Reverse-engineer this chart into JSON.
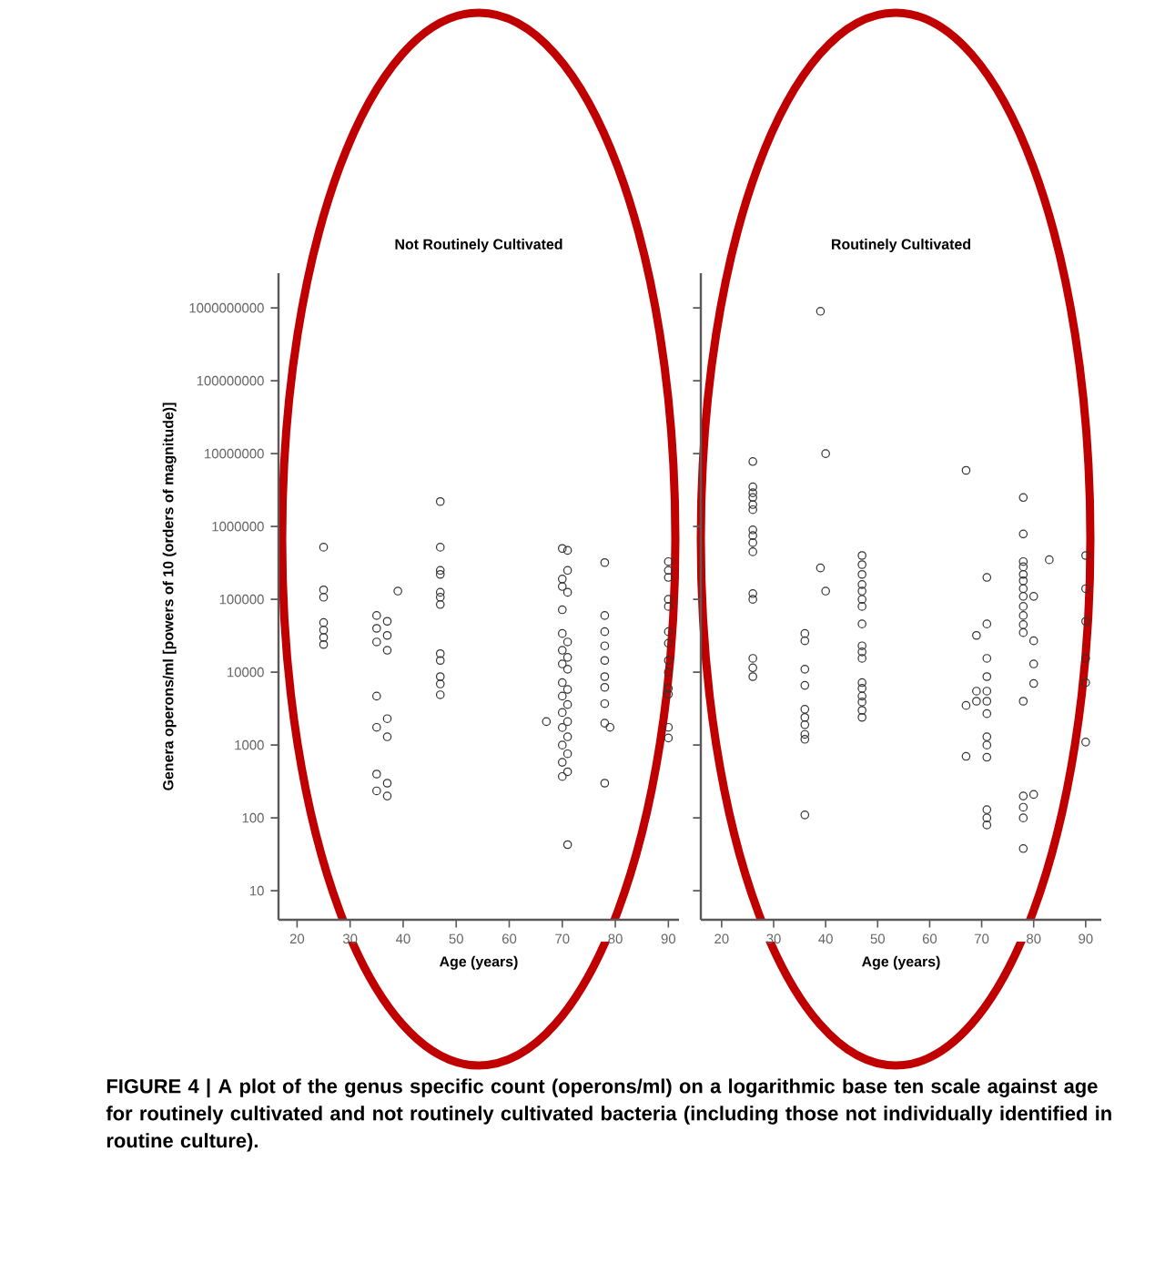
{
  "chart_data": [
    {
      "type": "scatter",
      "title": "Not Routinely Cultivated",
      "xlabel": "Age (years)",
      "ylabel": "Genera operons/ml [powers of 10 (orders of magnitude)]",
      "annotations": [
        "FIGURE 4 | A plot of the genus specific count (operons/ml) on a logarithmic base ten scale against age for routinely cultivated and not routinely cultivated bacteria (including those not individually identified in routine culture)."
      ],
      "log": "y",
      "marker": "circle",
      "color": "#333333",
      "xlim": [
        16.5,
        92
      ],
      "xticks": [
        20,
        30,
        40,
        50,
        60,
        70,
        80,
        90
      ],
      "ylim": [
        4,
        3000000000
      ],
      "yticks": [
        10,
        100,
        1000,
        10000,
        100000,
        1000000,
        10000000,
        100000000,
        1000000000
      ],
      "x": [
        25,
        25,
        25,
        25,
        25,
        25,
        25,
        35,
        35,
        35,
        35,
        35,
        35,
        35,
        37,
        37,
        37,
        37,
        37,
        37,
        37,
        39,
        47,
        47,
        47,
        47,
        47,
        47,
        47,
        47,
        47,
        47,
        47,
        47,
        67,
        70,
        70,
        70,
        70,
        70,
        70,
        70,
        70,
        70,
        70,
        70,
        70,
        70,
        70,
        71,
        71,
        71,
        71,
        71,
        71,
        71,
        71,
        71,
        71,
        71,
        71,
        71,
        78,
        78,
        78,
        78,
        78,
        78,
        78,
        78,
        78,
        78,
        79,
        90,
        90,
        90,
        90,
        90,
        90,
        90,
        90,
        90,
        90,
        90,
        90,
        90
      ],
      "values": [
        520000,
        135000,
        107000,
        48000,
        38000,
        30000,
        24000,
        60000,
        40000,
        26000,
        4700,
        1750,
        400,
        235,
        50000,
        32000,
        20000,
        2300,
        1300,
        300,
        200,
        130000,
        2200000,
        520000,
        250000,
        220000,
        125000,
        107000,
        85000,
        18000,
        14500,
        8700,
        6900,
        4900,
        2100,
        500000,
        190000,
        150000,
        72000,
        34000,
        20000,
        13000,
        7200,
        4700,
        2800,
        1740,
        1000,
        580,
        370,
        470000,
        250000,
        125000,
        26000,
        16000,
        11000,
        5800,
        3600,
        2100,
        1300,
        760,
        430,
        43,
        320000,
        60000,
        36000,
        23000,
        14500,
        8700,
        6200,
        3700,
        2000,
        300,
        1750,
        330000,
        250000,
        200000,
        100000,
        80000,
        36000,
        25000,
        14500,
        10000,
        6000,
        5000,
        1750,
        1250
      ]
    },
    {
      "type": "scatter",
      "title": "Routinely Cultivated",
      "xlabel": "Age (years)",
      "tick_labels": "x",
      "log": "y",
      "marker": "circle",
      "color": "#333333",
      "xlim": [
        16,
        93
      ],
      "xticks": [
        20,
        30,
        40,
        50,
        60,
        70,
        80,
        90
      ],
      "ylim": [
        4,
        3000000000
      ],
      "yticks": [
        10,
        100,
        1000,
        10000,
        100000,
        1000000,
        10000000,
        100000000,
        1000000000
      ],
      "x": [
        26,
        26,
        26,
        26,
        26,
        26,
        26,
        26,
        26,
        26,
        26,
        26,
        26,
        26,
        26,
        36,
        36,
        36,
        36,
        36,
        36,
        36,
        36,
        36,
        36,
        39,
        39,
        40,
        40,
        47,
        47,
        47,
        47,
        47,
        47,
        47,
        47,
        47,
        47,
        47,
        47,
        47,
        47,
        47,
        47,
        47,
        67,
        67,
        67,
        69,
        69,
        69,
        71,
        71,
        71,
        71,
        71,
        71,
        71,
        71,
        71,
        71,
        71,
        71,
        71,
        78,
        78,
        78,
        78,
        78,
        78,
        78,
        78,
        78,
        78,
        78,
        78,
        78,
        78,
        78,
        78,
        78,
        80,
        80,
        80,
        80,
        80,
        83,
        90,
        90,
        90,
        90,
        90,
        90
      ],
      "values": [
        7800000,
        3500000,
        2900000,
        2500000,
        2000000,
        1700000,
        900000,
        750000,
        600000,
        450000,
        120000,
        100000,
        15500,
        11500,
        8700,
        34000,
        27000,
        11000,
        6600,
        3100,
        2400,
        1900,
        1400,
        1200,
        110,
        900000000,
        270000,
        10000000,
        130000,
        400000,
        300000,
        220000,
        160000,
        130000,
        100000,
        80000,
        46000,
        23000,
        19000,
        15500,
        7200,
        6000,
        4700,
        3900,
        3000,
        2400,
        5900000,
        3500,
        700,
        32000,
        5500,
        4000,
        200000,
        46000,
        15500,
        8700,
        5500,
        4000,
        2700,
        1300,
        1000,
        680,
        130,
        100,
        80,
        2500000,
        790000,
        330000,
        280000,
        220000,
        180000,
        140000,
        110000,
        80000,
        60000,
        45000,
        35000,
        4000,
        200,
        140,
        100,
        38,
        110000,
        27000,
        13000,
        7000,
        210,
        350000,
        400000,
        140000,
        50000,
        15500,
        7200,
        1100
      ]
    }
  ]
}
